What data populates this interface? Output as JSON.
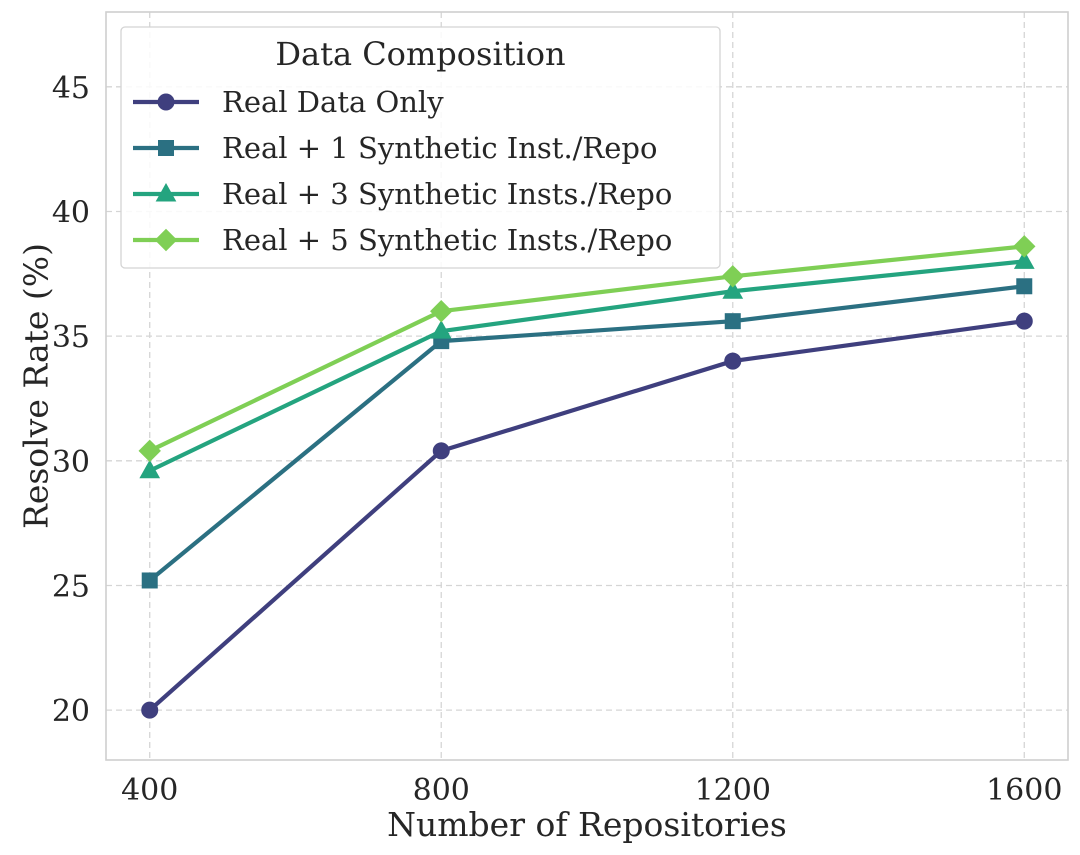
{
  "chart_data": {
    "type": "line",
    "title": "",
    "xlabel": "Number of Repositories",
    "ylabel": "Resolve Rate (%)",
    "x": [
      400,
      800,
      1200,
      1600
    ],
    "x_ticks": [
      "400",
      "800",
      "1200",
      "1600"
    ],
    "xlim": [
      340,
      1660
    ],
    "ylim": [
      18,
      48
    ],
    "y_ticks": [
      20,
      25,
      30,
      35,
      40,
      45
    ],
    "grid": true,
    "legend": {
      "title": "Data Composition",
      "placement": "top-left"
    },
    "series": [
      {
        "name": "Real Data Only",
        "color": "#3f3f7e",
        "marker": "circle",
        "values": [
          20.0,
          30.4,
          34.0,
          35.6
        ]
      },
      {
        "name": "Real + 1 Synthetic Inst./Repo",
        "color": "#2b7082",
        "marker": "square",
        "values": [
          25.2,
          34.8,
          35.6,
          37.0
        ]
      },
      {
        "name": "Real + 3 Synthetic Insts./Repo",
        "color": "#24a47f",
        "marker": "triangle",
        "values": [
          29.6,
          35.2,
          36.8,
          38.0
        ]
      },
      {
        "name": "Real + 5 Synthetic Insts./Repo",
        "color": "#7fcf55",
        "marker": "diamond",
        "values": [
          30.4,
          36.0,
          37.4,
          38.6
        ]
      }
    ]
  }
}
